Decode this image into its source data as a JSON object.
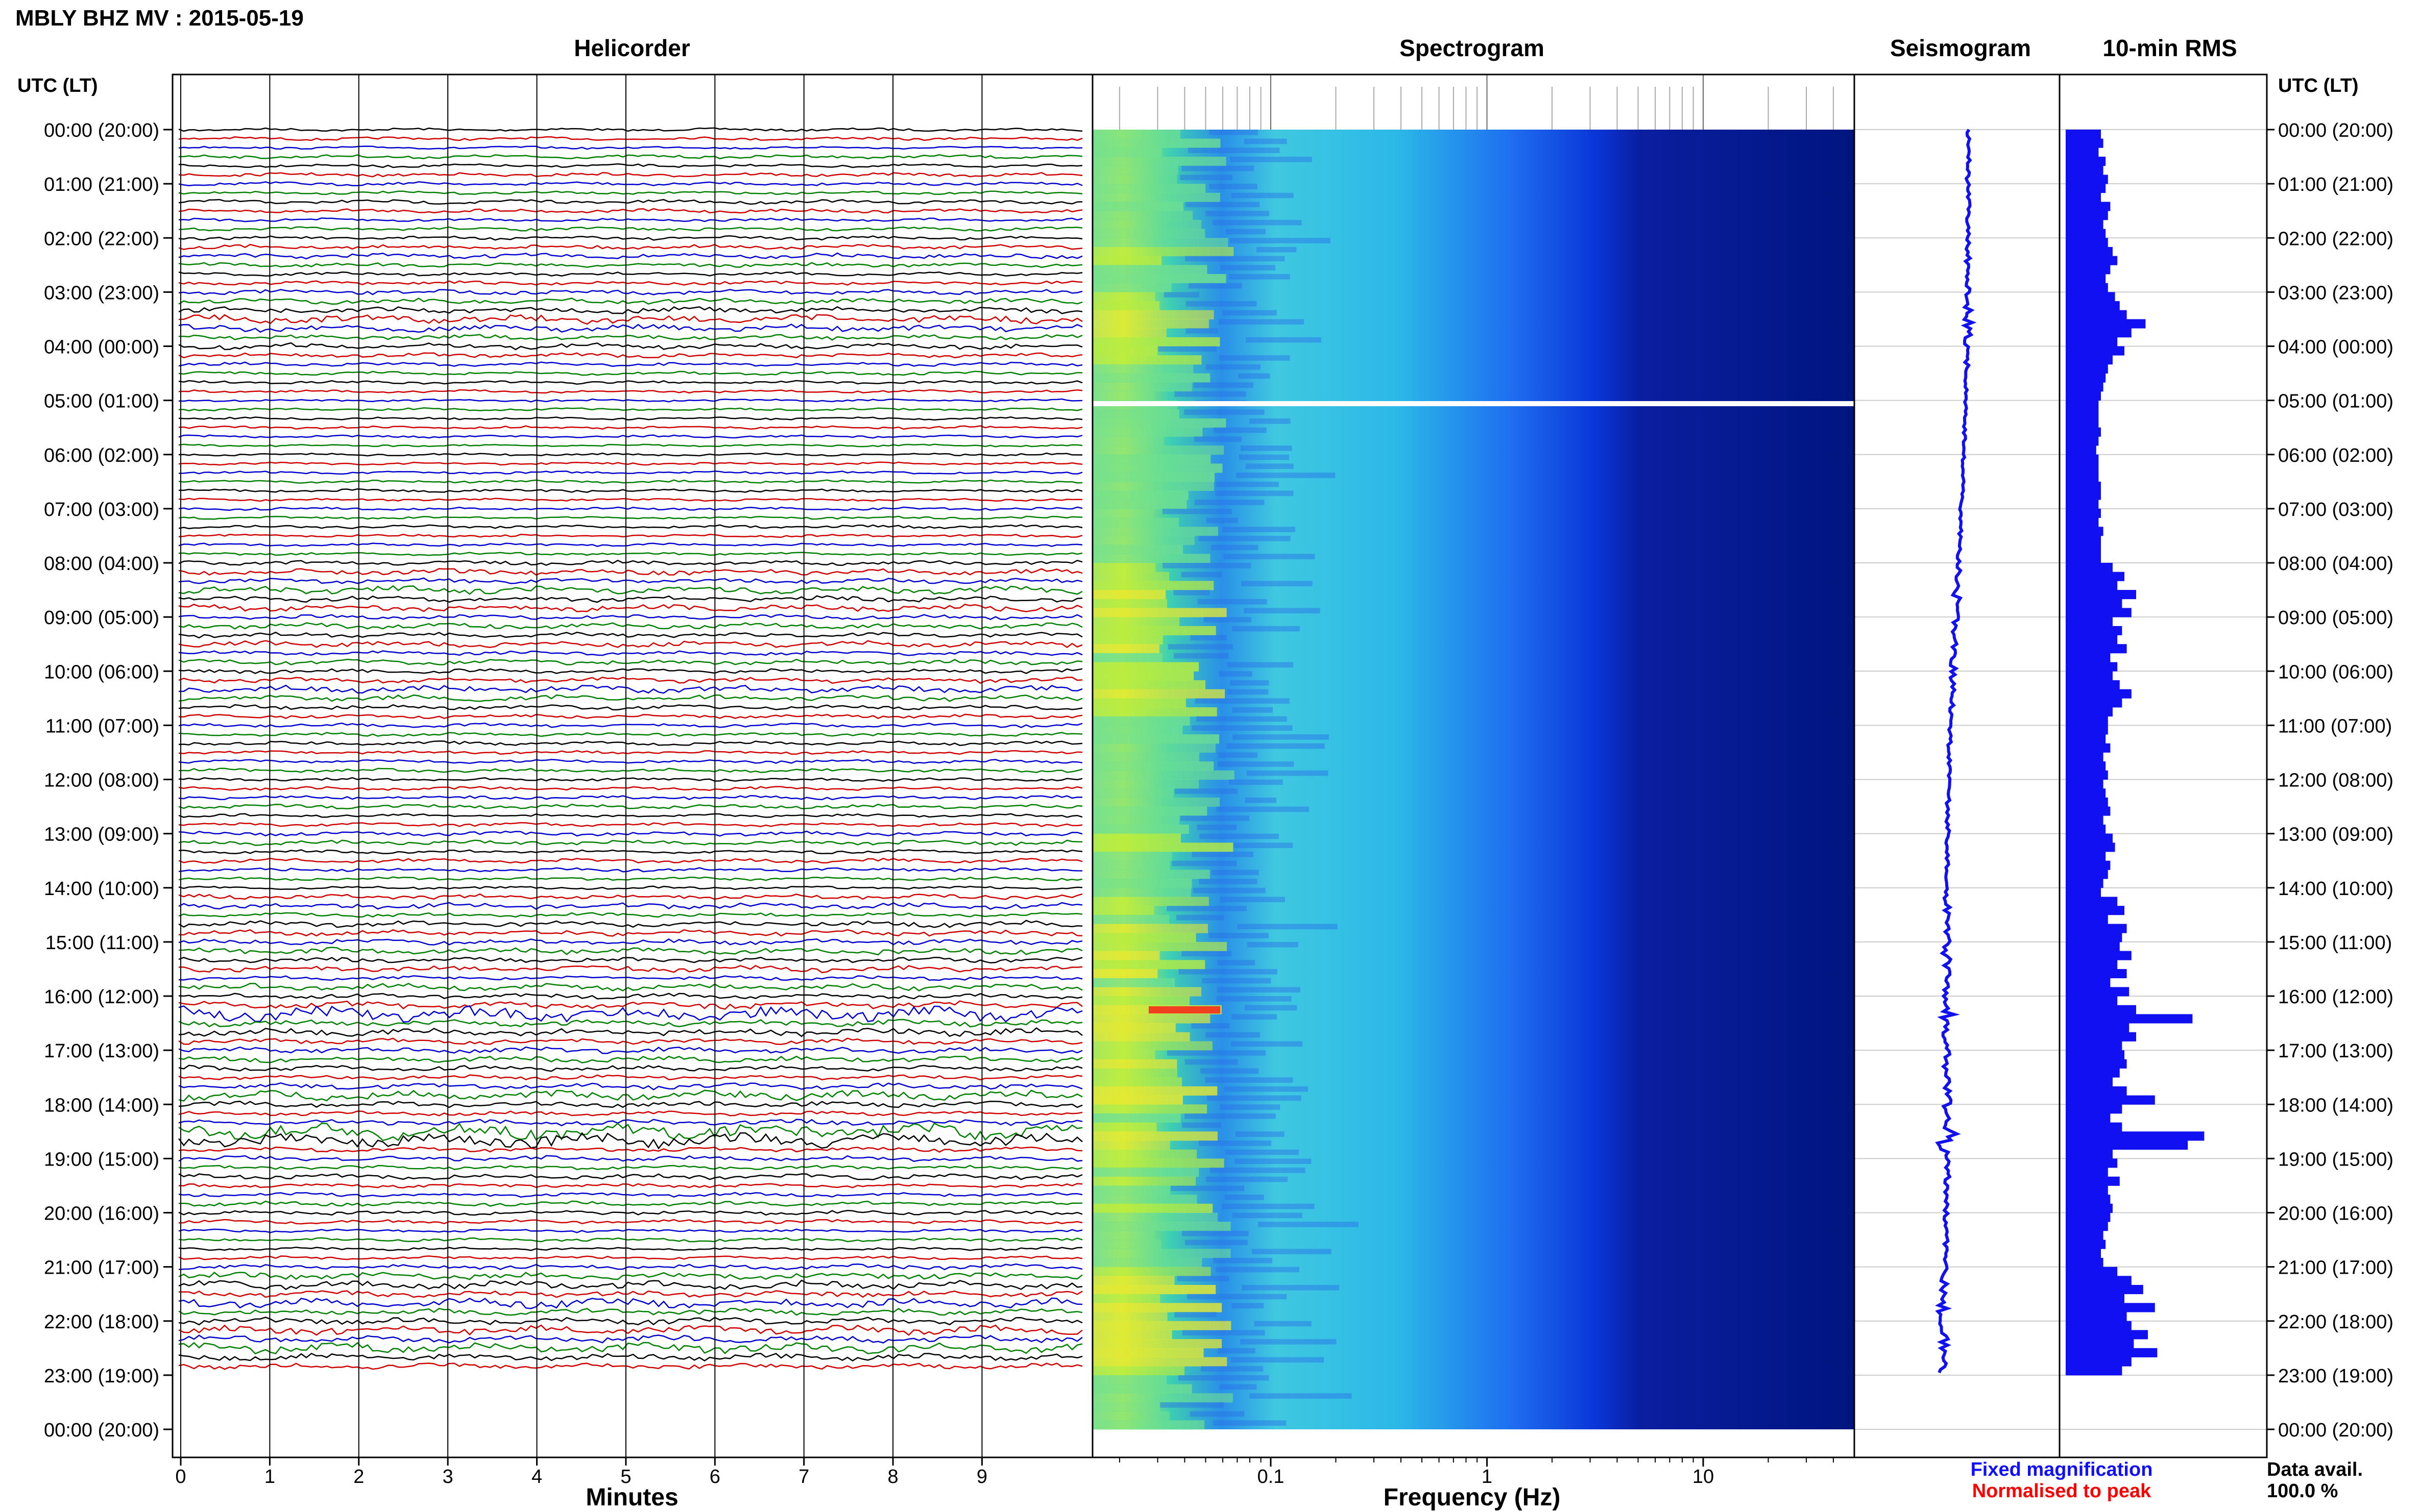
{
  "header": {
    "station_title": "MBLY BHZ MV : 2015-05-19",
    "utc_lt_left": "UTC (LT)",
    "utc_lt_right": "UTC (LT)"
  },
  "panels": {
    "helicorder": "Helicorder",
    "spectrogram": "Spectrogram",
    "seismogram": "Seismogram",
    "rms": "10-min RMS"
  },
  "axes": {
    "minutes_label": "Minutes",
    "frequency_label": "Frequency (Hz)",
    "minute_ticks": [
      "0",
      "1",
      "2",
      "3",
      "4",
      "5",
      "6",
      "7",
      "8",
      "9"
    ],
    "frequency_ticks": [
      "0.1",
      "1",
      "10"
    ]
  },
  "legend": {
    "fixed": "Fixed magnification",
    "normalised": "Normalised to peak",
    "fixed_color": "#1010ff",
    "normalised_color": "#ff0000"
  },
  "data_availability": {
    "label": "Data avail.",
    "value": "100.0 %"
  },
  "time_labels": [
    "00:00 (20:00)",
    "01:00 (21:00)",
    "02:00 (22:00)",
    "03:00 (23:00)",
    "04:00 (00:00)",
    "05:00 (01:00)",
    "06:00 (02:00)",
    "07:00 (03:00)",
    "08:00 (04:00)",
    "09:00 (05:00)",
    "10:00 (06:00)",
    "11:00 (07:00)",
    "12:00 (08:00)",
    "13:00 (09:00)",
    "14:00 (10:00)",
    "15:00 (11:00)",
    "16:00 (12:00)",
    "17:00 (13:00)",
    "18:00 (14:00)",
    "19:00 (15:00)",
    "20:00 (16:00)",
    "21:00 (17:00)",
    "22:00 (18:00)",
    "23:00 (19:00)",
    "00:00 (20:00)"
  ],
  "colors": {
    "trace_cycle": [
      "#000000",
      "#d00000",
      "#0000d0",
      "#008000"
    ],
    "rms_bar": "#1010f0",
    "seismogram": "#1010f0"
  },
  "chart_data": {
    "type": "bar",
    "title": "10-min RMS",
    "y_axis": "UTC hour of day, 0 to 24",
    "bins_per_hour": 6,
    "rms_values": [
      1.5,
      1.6,
      1.4,
      1.7,
      1.6,
      1.8,
      1.7,
      1.5,
      1.9,
      1.8,
      1.6,
      1.7,
      1.8,
      2.0,
      2.2,
      1.9,
      1.7,
      1.8,
      2.1,
      2.3,
      2.6,
      3.4,
      2.8,
      2.2,
      2.5,
      2.0,
      1.8,
      1.7,
      1.6,
      1.5,
      1.4,
      1.4,
      1.4,
      1.5,
      1.4,
      1.3,
      1.4,
      1.4,
      1.4,
      1.5,
      1.5,
      1.4,
      1.5,
      1.4,
      1.6,
      1.5,
      1.5,
      1.5,
      2.0,
      2.5,
      2.2,
      3.0,
      2.4,
      2.8,
      2.0,
      2.4,
      2.2,
      2.6,
      1.9,
      2.2,
      2.0,
      2.3,
      2.8,
      2.4,
      2.0,
      1.8,
      1.8,
      1.7,
      1.9,
      1.6,
      1.7,
      1.8,
      1.6,
      1.7,
      1.8,
      1.9,
      1.6,
      1.7,
      2.0,
      2.1,
      1.7,
      1.9,
      1.8,
      1.6,
      1.5,
      2.2,
      2.5,
      1.8,
      2.6,
      2.4,
      2.3,
      2.8,
      2.2,
      2.6,
      1.9,
      2.7,
      2.2,
      3.0,
      5.4,
      2.7,
      3.0,
      2.4,
      2.5,
      2.6,
      2.3,
      2.0,
      2.6,
      3.8,
      2.4,
      1.9,
      2.4,
      5.9,
      5.2,
      2.0,
      2.2,
      1.8,
      2.3,
      1.8,
      1.9,
      2.0,
      1.9,
      1.8,
      1.6,
      1.7,
      1.5,
      1.6,
      2.2,
      2.8,
      3.3,
      2.5,
      3.8,
      2.6,
      2.8,
      3.5,
      2.9,
      3.9,
      2.8,
      2.4
    ]
  }
}
